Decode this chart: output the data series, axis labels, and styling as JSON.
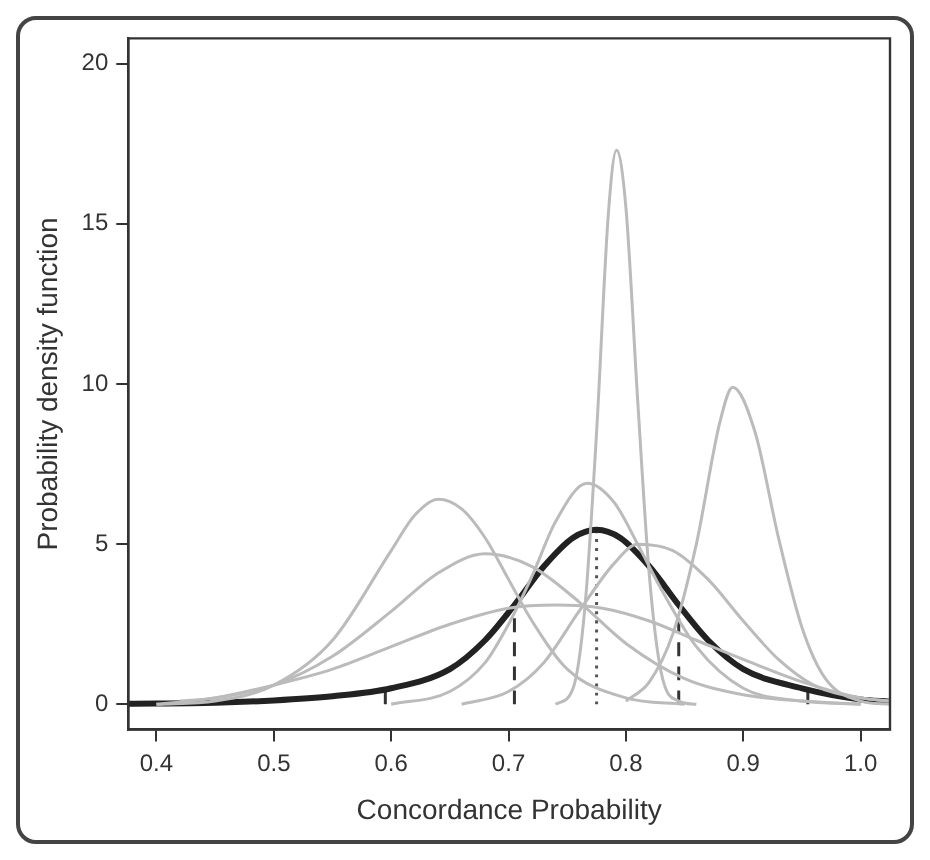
{
  "chart_data": {
    "type": "line",
    "xlabel": "Concordance Probability",
    "ylabel": "Probability density function",
    "xlim": [
      0.376,
      1.025
    ],
    "ylim": [
      -0.79,
      20.79
    ],
    "xticks": [
      {
        "value": 0.4,
        "label": "0.4"
      },
      {
        "value": 0.5,
        "label": "0.5"
      },
      {
        "value": 0.6,
        "label": "0.6"
      },
      {
        "value": 0.7,
        "label": "0.7"
      },
      {
        "value": 0.8,
        "label": "0.8"
      },
      {
        "value": 0.9,
        "label": "0.9"
      },
      {
        "value": 1.0,
        "label": "1.0"
      }
    ],
    "yticks": [
      0,
      5,
      10,
      15,
      20
    ],
    "grid": false,
    "legend": false,
    "marker": "none",
    "series": [
      {
        "color": "#bbbbbb",
        "x": [
          0.4,
          0.45,
          0.5,
          0.55,
          0.6,
          0.62,
          0.64,
          0.66,
          0.68,
          0.7,
          0.72,
          0.75,
          0.8,
          0.85
        ],
        "values": [
          0,
          0.1,
          0.6,
          2.0,
          4.8,
          5.9,
          6.4,
          6.1,
          5.2,
          3.9,
          2.6,
          1.1,
          0.2,
          0
        ]
      },
      {
        "color": "#bbbbbb",
        "x": [
          0.42,
          0.45,
          0.5,
          0.55,
          0.6,
          0.64,
          0.68,
          0.72,
          0.76,
          0.8,
          0.85,
          0.9,
          0.95,
          1.0
        ],
        "values": [
          0.1,
          0.2,
          0.6,
          1.5,
          2.9,
          4.1,
          4.7,
          4.3,
          3.2,
          1.9,
          0.8,
          0.3,
          0.1,
          0
        ]
      },
      {
        "color": "#bbbbbb",
        "x": [
          0.4,
          0.45,
          0.5,
          0.55,
          0.6,
          0.65,
          0.7,
          0.74,
          0.78,
          0.82,
          0.86,
          0.9,
          0.95,
          1.0,
          1.025
        ],
        "values": [
          0,
          0.2,
          0.6,
          1.1,
          1.8,
          2.5,
          3.0,
          3.1,
          3.0,
          2.6,
          2.0,
          1.4,
          0.7,
          0.2,
          0.1
        ]
      },
      {
        "color": "#bbbbbb",
        "x": [
          0.6,
          0.65,
          0.68,
          0.7,
          0.72,
          0.74,
          0.767,
          0.79,
          0.81,
          0.83,
          0.86,
          0.9,
          0.95,
          1.0
        ],
        "values": [
          0,
          0.4,
          1.3,
          2.5,
          4.0,
          5.7,
          6.9,
          6.3,
          5.0,
          3.6,
          1.8,
          0.5,
          0.1,
          0
        ]
      },
      {
        "color": "#bbbbbb",
        "x": [
          0.74,
          0.755,
          0.765,
          0.775,
          0.785,
          0.792,
          0.8,
          0.81,
          0.82,
          0.83,
          0.845,
          0.86
        ],
        "values": [
          0,
          0.5,
          3.0,
          8.5,
          15.3,
          17.3,
          15.5,
          9.5,
          4.0,
          1.0,
          0.1,
          0
        ]
      },
      {
        "color": "#bbbbbb",
        "x": [
          0.66,
          0.7,
          0.73,
          0.76,
          0.79,
          0.81,
          0.84,
          0.87,
          0.9,
          0.93,
          0.96,
          1.0,
          1.025
        ],
        "values": [
          0,
          0.4,
          1.3,
          2.9,
          4.4,
          5.0,
          4.8,
          3.9,
          2.6,
          1.4,
          0.6,
          0.2,
          0.1
        ]
      },
      {
        "color": "#bbbbbb",
        "x": [
          0.8,
          0.82,
          0.84,
          0.86,
          0.88,
          0.891,
          0.91,
          0.93,
          0.95,
          0.97,
          1.0,
          1.025
        ],
        "values": [
          0.1,
          0.7,
          2.2,
          5.0,
          8.8,
          9.9,
          8.5,
          5.2,
          2.4,
          0.8,
          0.1,
          0
        ]
      },
      {
        "color": "#222222",
        "x": [
          0.376,
          0.45,
          0.5,
          0.55,
          0.6,
          0.65,
          0.68,
          0.705,
          0.73,
          0.755,
          0.775,
          0.795,
          0.82,
          0.845,
          0.87,
          0.9,
          0.95,
          1.0,
          1.025
        ],
        "values": [
          0.02,
          0.05,
          0.12,
          0.25,
          0.5,
          1.1,
          2.0,
          3.1,
          4.3,
          5.2,
          5.45,
          5.2,
          4.3,
          3.1,
          2.0,
          1.1,
          0.5,
          0.15,
          0.08
        ]
      },
      {
        "color": "#333333",
        "line_style": "dashed",
        "x": [
          0.705,
          0.705
        ],
        "values": [
          0,
          3.1
        ]
      },
      {
        "color": "#333333",
        "line_style": "dashed",
        "x": [
          0.845,
          0.845
        ],
        "values": [
          0,
          3.1
        ]
      },
      {
        "color": "#555555",
        "line_style": "dotted",
        "x": [
          0.775,
          0.775
        ],
        "values": [
          0,
          5.45
        ]
      },
      {
        "color": "#333333",
        "x": [
          0.595,
          0.595
        ],
        "values": [
          0,
          0.4
        ]
      },
      {
        "color": "#333333",
        "x": [
          0.955,
          0.955
        ],
        "values": [
          0,
          0.4
        ]
      }
    ]
  }
}
